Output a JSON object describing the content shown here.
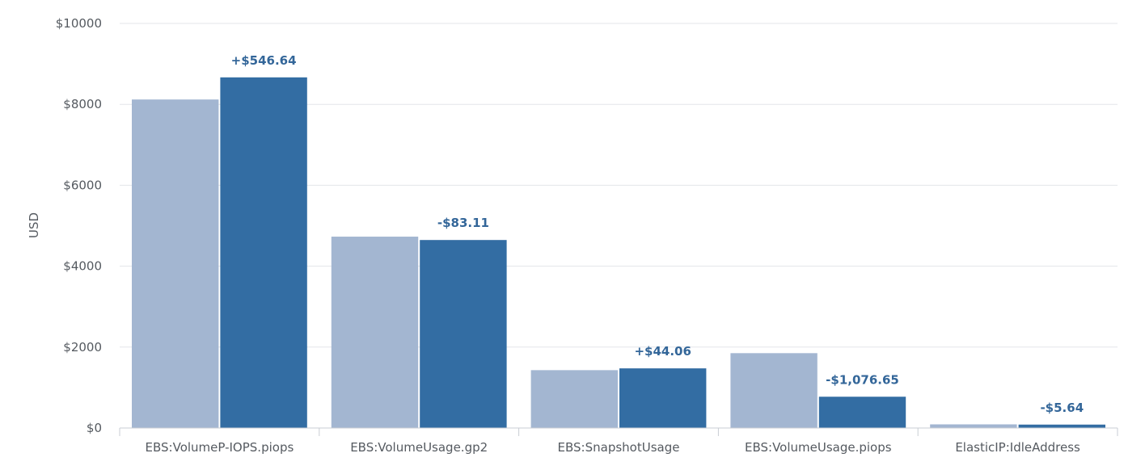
{
  "chart_data": {
    "type": "bar",
    "ylabel": "USD",
    "ylim": [
      0,
      10000
    ],
    "yticks": [
      0,
      2000,
      4000,
      6000,
      8000,
      10000
    ],
    "ytick_labels": [
      "$0",
      "$2000",
      "$4000",
      "$6000",
      "$8000",
      "$10000"
    ],
    "grid": true,
    "categories": [
      "EBS:VolumeP-IOPS.piops",
      "EBS:VolumeUsage.gp2",
      "EBS:SnapshotUsage",
      "EBS:VolumeUsage.piops",
      "ElasticIP:IdleAddress"
    ],
    "series": [
      {
        "values": [
          8120,
          4730,
          1430,
          1850,
          90
        ],
        "color": "#a3b6d1"
      },
      {
        "values": [
          8666.64,
          4646.89,
          1474.06,
          773.35,
          84.36
        ],
        "color": "#336da3"
      }
    ],
    "annotations": [
      "+$546.64",
      "-$83.11",
      "+$44.06",
      "-$1,076.65",
      "-$5.64"
    ],
    "annotation_color": "#336699"
  }
}
